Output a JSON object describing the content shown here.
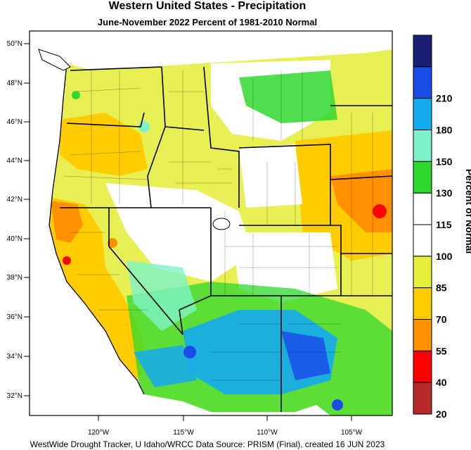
{
  "title": "Western United States - Precipitation",
  "subtitle": "June-November 2022  Percent of 1981-2010 Normal",
  "credit": "WestWide Drought Tracker, U Idaho/WRCC Data Source: PRISM (Final), created 16 JUN 2023",
  "colorbar": {
    "label": "Percent of Normal",
    "bins": [
      {
        "color": "#1b1f74"
      },
      {
        "color": "#1a4de8",
        "tick": "210"
      },
      {
        "color": "#14aaf0",
        "tick": "180"
      },
      {
        "color": "#7ef2c8",
        "tick": "150"
      },
      {
        "color": "#2fd82f",
        "tick": "130"
      },
      {
        "color": "#ffffff",
        "tick": "115"
      },
      {
        "color": "#ffffff",
        "tick": "100"
      },
      {
        "color": "#e6f03c",
        "tick": "85"
      },
      {
        "color": "#ffcc00",
        "tick": "70"
      },
      {
        "color": "#ff9000",
        "tick": "55"
      },
      {
        "color": "#ff0000",
        "tick": "40"
      },
      {
        "color": "#b62a2a",
        "tick": "20"
      }
    ]
  },
  "map": {
    "lat_ticks": [
      "50°N",
      "48°N",
      "46°N",
      "44°N",
      "42°N",
      "40°N",
      "38°N",
      "36°N",
      "34°N",
      "32°N"
    ],
    "lon_ticks": [
      "120°W",
      "115°W",
      "110°W",
      "105°W"
    ]
  }
}
